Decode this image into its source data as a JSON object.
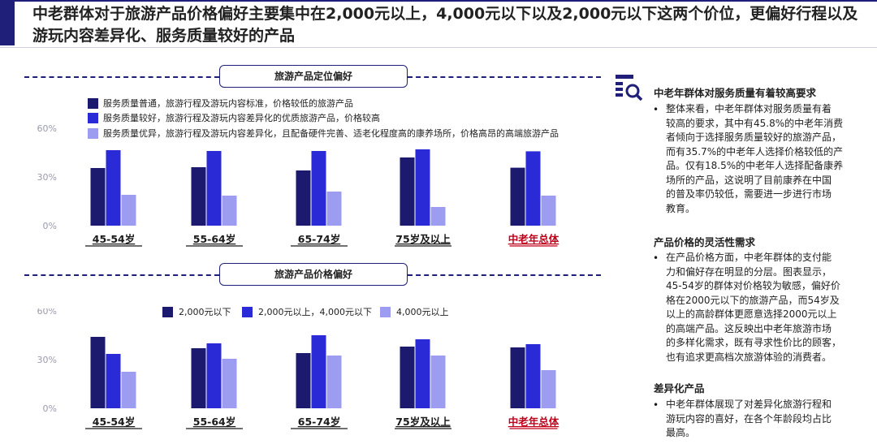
{
  "headline": "中老群体对于旅游产品价格偏好主要集中在2,000元以上，4,000元以下以及2,000元以下这两个价位，更偏好行程以及游玩内容差异化、服务质量较好的产品",
  "colors": {
    "dark": "#1b1a6e",
    "mid": "#2a2ad6",
    "light": "#9c9cf0",
    "highlight": "#c0001a"
  },
  "section1": {
    "title": "旅游产品定位偏好",
    "legend": [
      "服务质量普通，旅游行程及游玩内容标准，价格较低的旅游产品",
      "服务质量较好，旅游行程及游玩内容差异化的优质旅游产品，价格较高",
      "服务质量优异，旅游行程及游玩内容差异化，且配备硬件完善、适老化程度高的康养场所，价格高昂的高端旅游产品"
    ]
  },
  "section2": {
    "title": "旅游产品价格偏好",
    "legend": [
      "2,000元以下",
      "2,000元以上，4,000元以下",
      "4,000元以上"
    ]
  },
  "chart_data": [
    {
      "type": "bar",
      "title": "旅游产品定位偏好",
      "categories": [
        "45-54岁",
        "55-64岁",
        "65-74岁",
        "75岁及以上",
        "中老年总体"
      ],
      "highlight_category": "中老年总体",
      "yticks": [
        "60%",
        "30%",
        "0%"
      ],
      "ylim": [
        0,
        60
      ],
      "series": [
        {
          "name": "服务质量普通，旅游行程及游玩内容标准，价格较低的旅游产品",
          "values": [
            35.5,
            36,
            34,
            42,
            35.7
          ]
        },
        {
          "name": "服务质量较好，旅游行程及游玩内容差异化的优质旅游产品，价格较高",
          "values": [
            46.5,
            46,
            46,
            47,
            45.8
          ]
        },
        {
          "name": "服务质量优异，旅游行程及游玩内容差异化，且配备硬件完善、适老化程度高的康养场所，价格高昂的高端旅游产品",
          "values": [
            19,
            18.5,
            21,
            11.5,
            18.5
          ]
        }
      ]
    },
    {
      "type": "bar",
      "title": "旅游产品价格偏好",
      "categories": [
        "45-54岁",
        "55-64岁",
        "65-74岁",
        "75岁及以上",
        "中老年总体"
      ],
      "highlight_category": "中老年总体",
      "yticks": [
        "60%",
        "30%",
        "0%"
      ],
      "ylim": [
        0,
        60
      ],
      "series": [
        {
          "name": "2,000元以下",
          "values": [
            44,
            37,
            34,
            38,
            37.5
          ]
        },
        {
          "name": "2,000元以上，4,000元以下",
          "values": [
            33.5,
            40,
            45,
            42.5,
            39.5
          ]
        },
        {
          "name": "4,000元以上",
          "values": [
            22.5,
            30.5,
            32.5,
            32.5,
            23.5
          ]
        }
      ]
    }
  ],
  "sidebar": {
    "h1": "中老年群体对服务质量有着较高要求",
    "p1": [
      "整体来看，中老年群体对服务质量有着",
      "较高的要求，其中有45.8%的中老年消费",
      "者倾向于选择服务质量较好的旅游产品，",
      "而有35.7%的中老年人选择价格较低的产",
      "品。仅有18.5%的中老年人选择配备康养",
      "场所的产品，这说明了目前康养在中国",
      "的普及率仍较低，需要进一步进行市场",
      "教育。"
    ],
    "h2": "产品价格的灵活性需求",
    "p2": [
      "在产品价格方面，中老年群体的支付能",
      "力和偏好存在明显的分层。图表显示，",
      "45-54岁的群体对价格较为敏感，偏好价",
      "格在2000元以下的旅游产品，而54岁及",
      "以上的高龄群体更愿意选择2000元以上",
      "的高端产品。这反映出中老年旅游市场",
      "的多样化需求，既有寻求性价比的顾客，",
      "也有追求更高档次旅游体验的消费者。"
    ],
    "h3": "差异化产品",
    "p3": [
      "中老年群体展现了对差异化旅游行程和",
      "游玩内容的喜好，在各个年龄段均占比",
      "最高。"
    ],
    "bullet": "•"
  }
}
